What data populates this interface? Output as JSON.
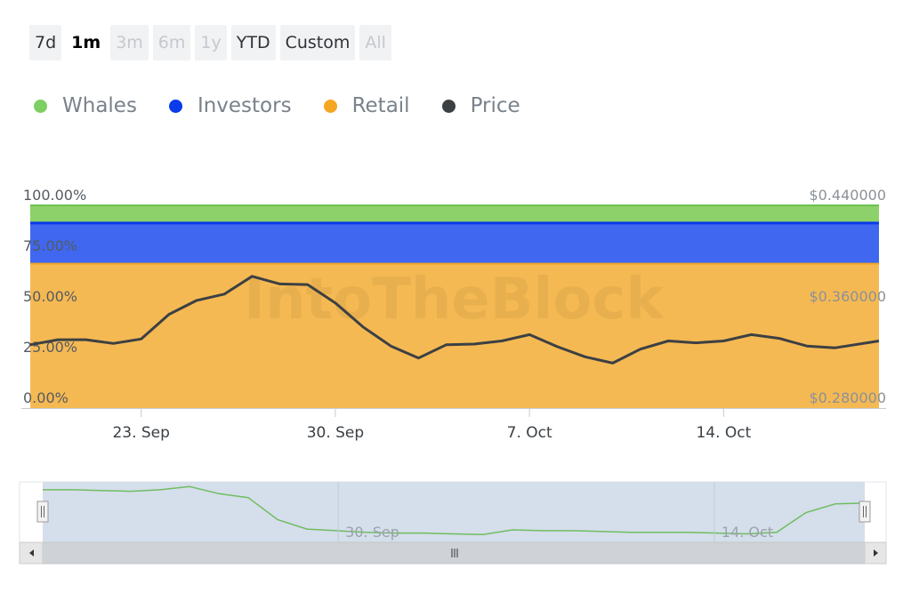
{
  "range_buttons": [
    {
      "label": "7d",
      "state": "normal"
    },
    {
      "label": "1m",
      "state": "active"
    },
    {
      "label": "3m",
      "state": "disabled"
    },
    {
      "label": "6m",
      "state": "disabled"
    },
    {
      "label": "1y",
      "state": "disabled"
    },
    {
      "label": "YTD",
      "state": "normal"
    },
    {
      "label": "Custom",
      "state": "normal"
    },
    {
      "label": "All",
      "state": "disabled"
    }
  ],
  "watermark": "IntoTheBlock",
  "colors": {
    "whales": "#8dd16a",
    "investors": "#3f67ef",
    "retail": "#f5b953",
    "price": "#3c4043"
  },
  "chart_data": {
    "type": "area",
    "legend_position": "top-left",
    "legend": [
      {
        "name": "Whales",
        "color": "#7ccf62"
      },
      {
        "name": "Investors",
        "color": "#0a3bea"
      },
      {
        "name": "Retail",
        "color": "#f5a623"
      },
      {
        "name": "Price",
        "color": "#3c4043"
      }
    ],
    "left_axis": {
      "ylim": [
        0,
        100
      ],
      "ticks": [
        "0.00%",
        "25.00%",
        "50.00%",
        "75.00%",
        "100.00%"
      ]
    },
    "right_axis": {
      "ylim": [
        0.28,
        0.44
      ],
      "ticks": [
        "$0.280000",
        "$0.360000",
        "$0.440000"
      ]
    },
    "x_ticks": [
      "23. Sep",
      "30. Sep",
      "7. Oct",
      "14. Oct"
    ],
    "x_tick_days": [
      3,
      10,
      17,
      24
    ],
    "x_range_days": [
      -1,
      29.6
    ],
    "stack_boundaries": {
      "retail_top": 71.2,
      "investors_top": 91.3,
      "whales_top": 100
    },
    "price_series": {
      "name": "Price",
      "days": [
        -1,
        0,
        1,
        2,
        3,
        4,
        5,
        6,
        7,
        8,
        9,
        10,
        11,
        12,
        13,
        14,
        15,
        16,
        17,
        18,
        19,
        20,
        21,
        22,
        23,
        24,
        25,
        26,
        27,
        28,
        29.6
      ],
      "values": [
        0.33,
        0.334,
        0.334,
        0.331,
        0.3345,
        0.354,
        0.365,
        0.37,
        0.384,
        0.378,
        0.3775,
        0.363,
        0.344,
        0.329,
        0.3195,
        0.33,
        0.3305,
        0.333,
        0.338,
        0.3285,
        0.3205,
        0.3155,
        0.3265,
        0.333,
        0.3315,
        0.333,
        0.338,
        0.335,
        0.329,
        0.3275,
        0.333
      ]
    },
    "navigator": {
      "labels": [
        "30. Sep",
        "14. Oct"
      ],
      "label_days": [
        10,
        24
      ],
      "series": [
        0.43,
        0.43,
        0.429,
        0.428,
        0.43,
        0.434,
        0.425,
        0.42,
        0.392,
        0.38,
        0.378,
        0.376,
        0.375,
        0.375,
        0.374,
        0.373,
        0.379,
        0.378,
        0.378,
        0.377,
        0.376,
        0.376,
        0.376,
        0.375,
        0.374,
        0.376,
        0.401,
        0.412,
        0.413
      ]
    }
  }
}
